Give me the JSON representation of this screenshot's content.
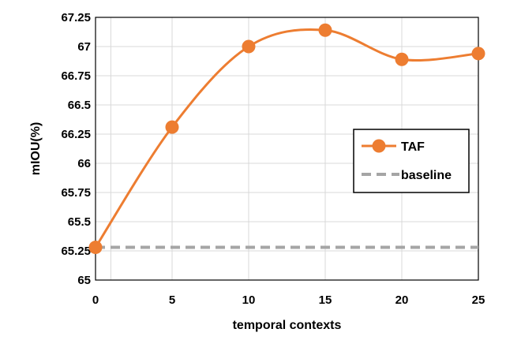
{
  "chart_data": {
    "type": "line",
    "xlabel": "temporal contexts",
    "ylabel": "mIOU(%)",
    "xlim": [
      0,
      25
    ],
    "ylim": [
      65,
      67.25
    ],
    "x_ticks": [
      "0",
      "5",
      "10",
      "15",
      "20",
      "25"
    ],
    "y_ticks": [
      "65",
      "65.25",
      "65.5",
      "65.75",
      "66",
      "66.25",
      "66.5",
      "66.75",
      "67",
      "67.25"
    ],
    "grid": true,
    "legend_position": "right",
    "series": [
      {
        "name": "TAF",
        "style": "smooth line with circle markers",
        "color": "#ED7D31",
        "points": [
          {
            "x": 0,
            "y": 65.28
          },
          {
            "x": 5,
            "y": 66.31
          },
          {
            "x": 10,
            "y": 67.0
          },
          {
            "x": 15,
            "y": 67.14
          },
          {
            "x": 20,
            "y": 66.89
          },
          {
            "x": 25,
            "y": 66.94
          }
        ]
      },
      {
        "name": "baseline",
        "style": "dashed",
        "color": "#A5A5A5",
        "points": [
          {
            "x": 0,
            "y": 65.28
          },
          {
            "x": 25,
            "y": 65.28
          }
        ]
      }
    ]
  }
}
